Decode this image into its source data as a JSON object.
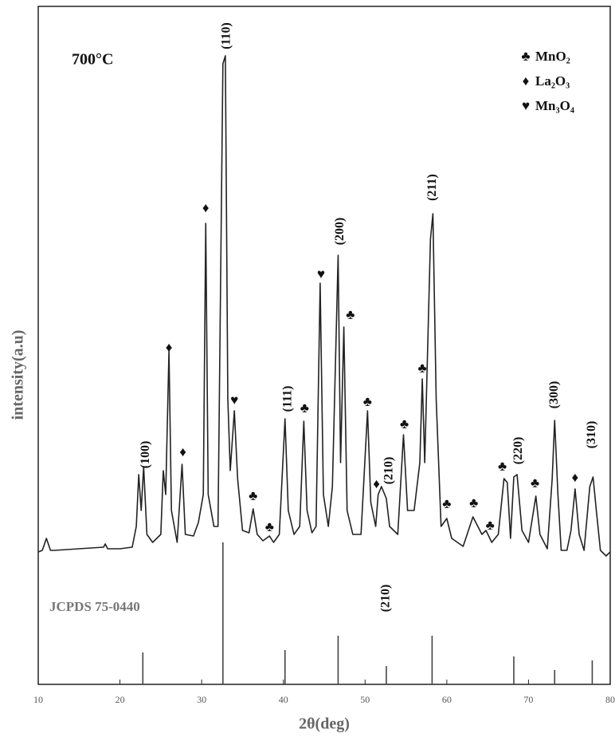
{
  "chart_data": {
    "type": "line",
    "xlabel": "2θ(deg)",
    "ylabel": "intensity(a.u)",
    "xlim": [
      10,
      80
    ],
    "xticks": [
      10,
      20,
      30,
      40,
      50,
      60,
      70,
      80
    ],
    "ylim": [
      0,
      850
    ],
    "sample_label": "700°C",
    "series": [
      {
        "color": "#222222",
        "x": [
          10,
          10.5,
          11,
          11.5,
          12,
          15,
          18,
          18.2,
          18.5,
          20,
          21.5,
          22,
          22.3,
          22.6,
          22.9,
          23.3,
          24,
          25,
          25.3,
          25.6,
          26,
          26.3,
          27,
          27.6,
          28,
          29,
          29.6,
          30.2,
          30.5,
          30.8,
          31.5,
          32,
          32.6,
          32.9,
          33.2,
          33.5,
          34,
          34.4,
          35,
          35.8,
          36.3,
          36.8,
          37.5,
          38.3,
          38.8,
          39.5,
          40.2,
          40.6,
          41.3,
          42,
          42.5,
          42.9,
          43.5,
          44,
          44.5,
          44.9,
          45.5,
          46,
          46.7,
          47,
          47.4,
          47.8,
          48.5,
          49.5,
          50.3,
          50.7,
          51.3,
          51.6,
          52,
          52.6,
          53,
          54,
          54.7,
          55.2,
          56,
          56.7,
          57,
          57.3,
          58,
          58.3,
          58.7,
          59.3,
          60,
          60.6,
          62,
          63.2,
          63.8,
          64.3,
          64.8,
          65.5,
          66.3,
          67,
          67.4,
          67.8,
          68.2,
          68.6,
          69.2,
          70,
          70.9,
          71.4,
          72.3,
          72.9,
          73.2,
          73.6,
          74,
          74.7,
          75.2,
          75.7,
          76.2,
          76.8,
          77.5,
          77.9,
          78.3,
          78.8,
          79.5,
          80
        ],
        "values": [
          166,
          168,
          183,
          168,
          168,
          170,
          172,
          176,
          170,
          170,
          172,
          198,
          263,
          218,
          273,
          188,
          178,
          188,
          268,
          238,
          418,
          218,
          178,
          276,
          188,
          186,
          203,
          238,
          578,
          238,
          198,
          198,
          778,
          788,
          358,
          268,
          343,
          258,
          193,
          190,
          220,
          188,
          180,
          186,
          178,
          188,
          333,
          218,
          188,
          198,
          330,
          218,
          190,
          198,
          503,
          238,
          198,
          248,
          538,
          278,
          448,
          218,
          188,
          188,
          343,
          228,
          198,
          238,
          248,
          233,
          198,
          188,
          313,
          218,
          218,
          278,
          383,
          278,
          558,
          590,
          358,
          198,
          208,
          183,
          173,
          210,
          198,
          188,
          193,
          178,
          188,
          258,
          253,
          183,
          260,
          263,
          193,
          178,
          236,
          188,
          170,
          258,
          331,
          238,
          168,
          168,
          193,
          245,
          188,
          168,
          248,
          260,
          218,
          168,
          161,
          166
        ]
      }
    ],
    "reference": {
      "name": "JCPDS 75-0440",
      "color": "#444444",
      "x": [
        22.8,
        32.6,
        40.2,
        46.7,
        52.6,
        58.2,
        68.2,
        73.2,
        77.8
      ],
      "values": [
        40,
        178,
        43,
        61,
        23,
        61,
        35,
        18,
        30
      ]
    },
    "peak_labels": [
      {
        "text": "(100)",
        "x": 23.2,
        "y": 288
      },
      {
        "text": "(110)",
        "x": 33.1,
        "y": 813
      },
      {
        "text": "(111)",
        "x": 40.6,
        "y": 358
      },
      {
        "text": "(200)",
        "x": 47.0,
        "y": 568
      },
      {
        "text": "(210)",
        "x": 53.0,
        "y": 268
      },
      {
        "text": "(211)",
        "x": 58.3,
        "y": 623
      },
      {
        "text": "(220)",
        "x": 68.8,
        "y": 293
      },
      {
        "text": "(300)",
        "x": 73.2,
        "y": 363
      },
      {
        "text": "(310)",
        "x": 77.8,
        "y": 313
      },
      {
        "text": "(210)",
        "x": 52.6,
        "y": 108
      }
    ],
    "markers": [
      {
        "text": "♦",
        "x": 26.0,
        "y": 421
      },
      {
        "text": "♦",
        "x": 30.5,
        "y": 596
      },
      {
        "text": "♦",
        "x": 27.7,
        "y": 290
      },
      {
        "text": "♥",
        "x": 34.0,
        "y": 355
      },
      {
        "text": "♣",
        "x": 36.3,
        "y": 235
      },
      {
        "text": "♣",
        "x": 38.3,
        "y": 196
      },
      {
        "text": "♣",
        "x": 42.6,
        "y": 345
      },
      {
        "text": "♥",
        "x": 44.6,
        "y": 513
      },
      {
        "text": "♣",
        "x": 48.2,
        "y": 462
      },
      {
        "text": "♣",
        "x": 50.3,
        "y": 353
      },
      {
        "text": "♦",
        "x": 51.4,
        "y": 250
      },
      {
        "text": "♣",
        "x": 54.8,
        "y": 325
      },
      {
        "text": "♣",
        "x": 57.0,
        "y": 395
      },
      {
        "text": "♣",
        "x": 60.0,
        "y": 225
      },
      {
        "text": "♣",
        "x": 63.3,
        "y": 226
      },
      {
        "text": "♣",
        "x": 65.3,
        "y": 198
      },
      {
        "text": "♣",
        "x": 66.8,
        "y": 272
      },
      {
        "text": "♣",
        "x": 70.8,
        "y": 251
      },
      {
        "text": "♦",
        "x": 75.7,
        "y": 258
      }
    ],
    "legend": [
      {
        "symbol": "♣",
        "name": "MnO₂"
      },
      {
        "symbol": "♦",
        "name": "La₂O₃"
      },
      {
        "symbol": "♥",
        "name": "Mn₃O₄"
      }
    ]
  }
}
